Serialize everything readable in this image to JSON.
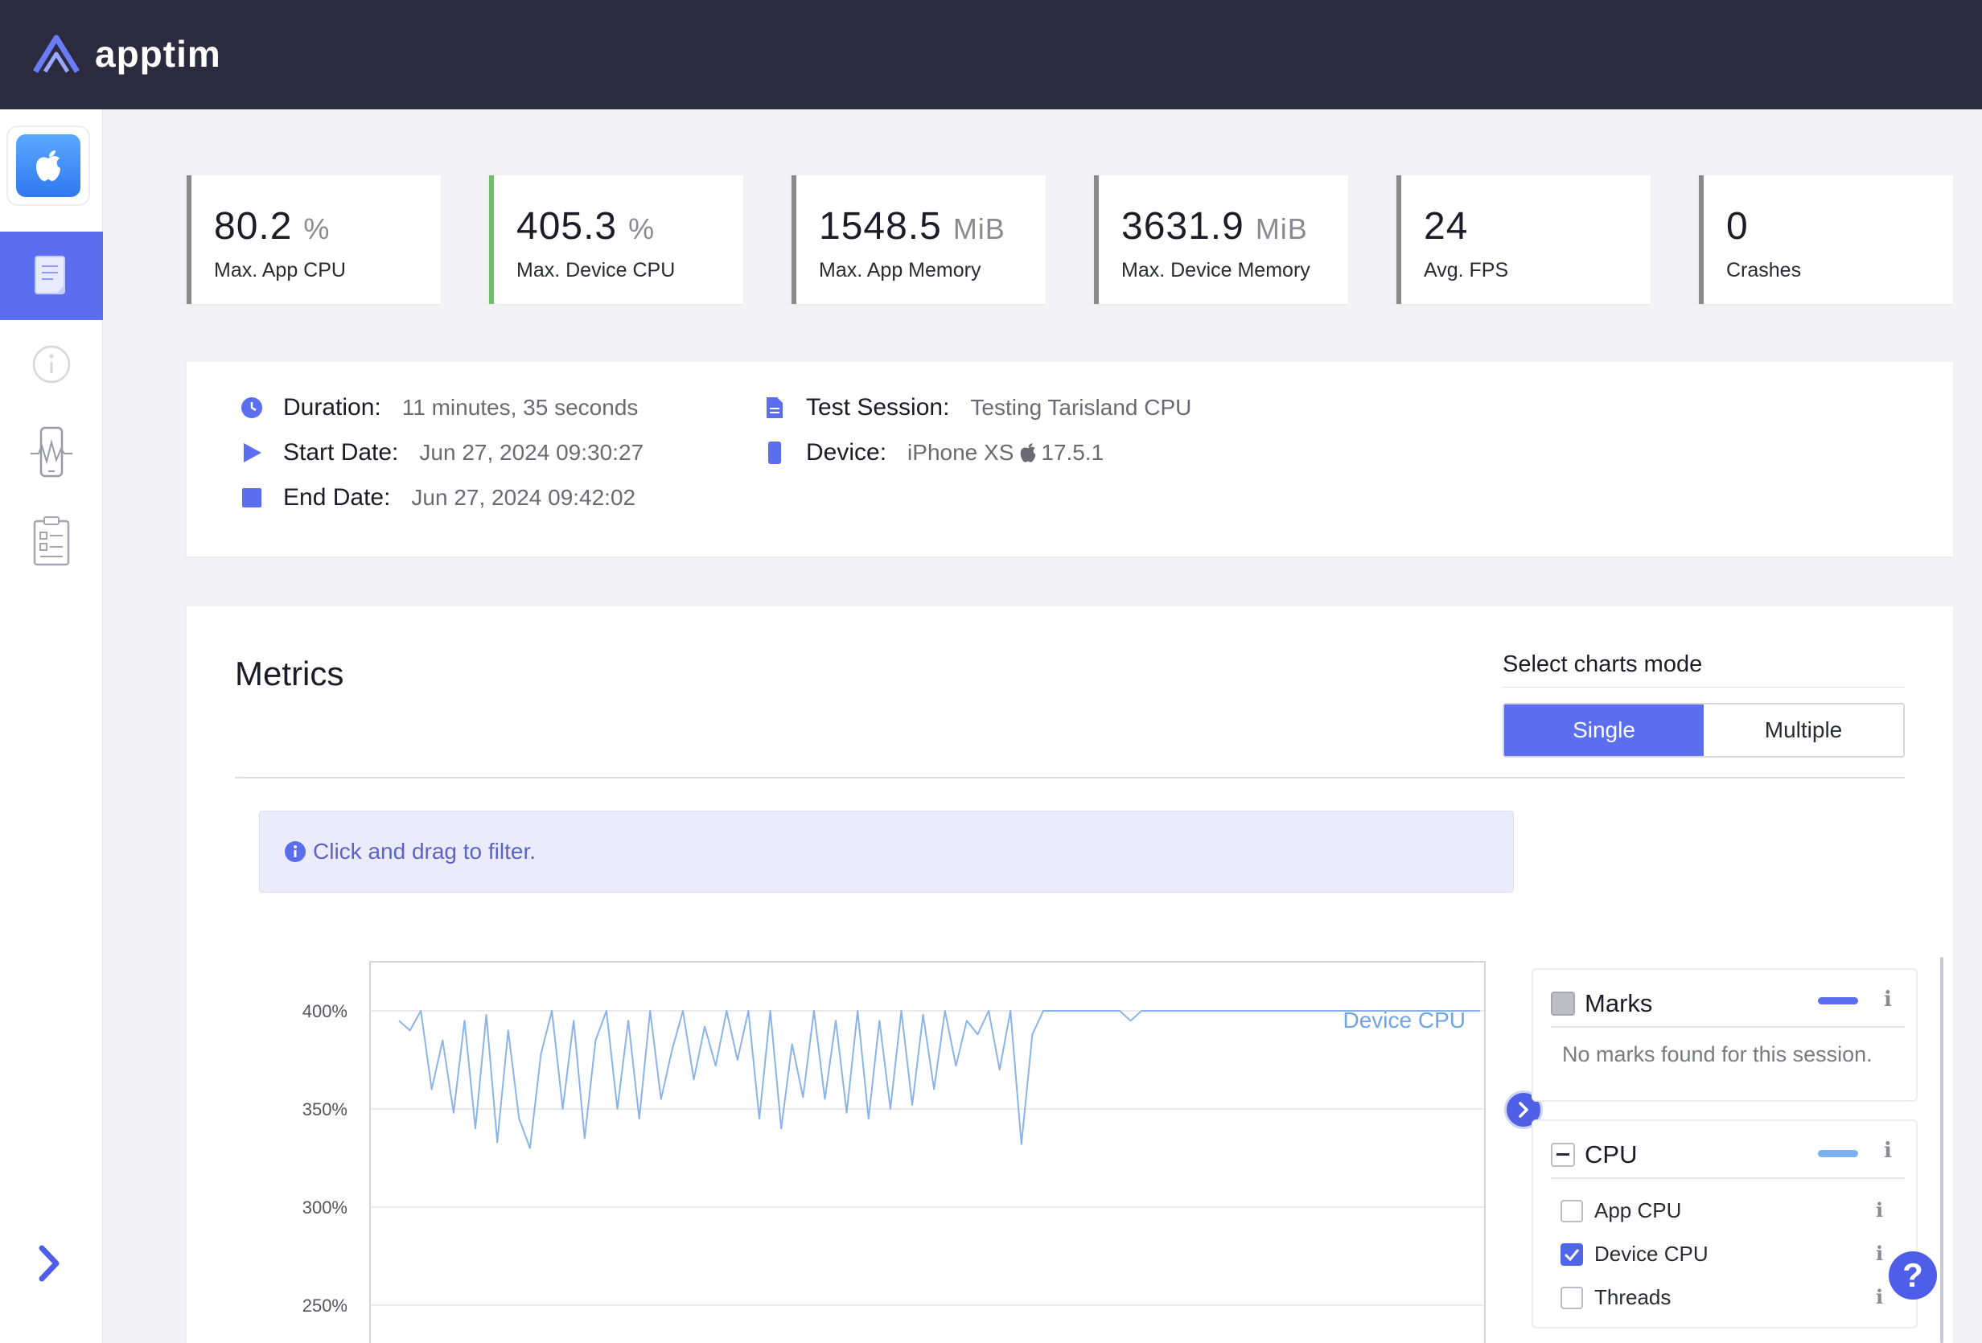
{
  "header": {
    "logo_text": "apptim"
  },
  "sidebar": {
    "items": [
      {
        "name": "app-platform",
        "icon": "apple-icon"
      },
      {
        "name": "report",
        "icon": "document-icon",
        "active": true
      },
      {
        "name": "info",
        "icon": "info-icon"
      },
      {
        "name": "device",
        "icon": "phone-icon"
      },
      {
        "name": "checklist",
        "icon": "clipboard-icon"
      }
    ],
    "expand_icon": "chevron-right-icon"
  },
  "summary_cards": [
    {
      "value": "80.2",
      "unit": "%",
      "label": "Max. App CPU"
    },
    {
      "value": "405.3",
      "unit": "%",
      "label": "Max. Device CPU"
    },
    {
      "value": "1548.5",
      "unit": "MiB",
      "label": "Max. App Memory"
    },
    {
      "value": "3631.9",
      "unit": "MiB",
      "label": "Max. Device Memory"
    },
    {
      "value": "24",
      "unit": "",
      "label": "Avg. FPS"
    },
    {
      "value": "0",
      "unit": "",
      "label": "Crashes"
    }
  ],
  "session": {
    "duration_label": "Duration:",
    "duration": "11 minutes, 35 seconds",
    "start_label": "Start Date:",
    "start": "Jun 27, 2024 09:30:27",
    "end_label": "End Date:",
    "end": "Jun 27, 2024 09:42:02",
    "test_session_label": "Test Session:",
    "test_session": "Testing Tarisland CPU",
    "device_label": "Device:",
    "device": "iPhone XS",
    "os_version": "17.5.1"
  },
  "metrics": {
    "title": "Metrics",
    "mode_label": "Select charts mode",
    "modes": [
      "Single",
      "Multiple"
    ],
    "selected_mode": "Single",
    "hint": "Click and drag to filter."
  },
  "chart_data": {
    "type": "line",
    "title": "",
    "series": [
      {
        "name": "Device CPU",
        "color": "#8ab3e8",
        "values": [
          395,
          390,
          400,
          360,
          385,
          348,
          395,
          340,
          398,
          333,
          390,
          345,
          330,
          378,
          400,
          350,
          395,
          335,
          385,
          400,
          350,
          395,
          345,
          400,
          355,
          380,
          400,
          365,
          392,
          372,
          400,
          375,
          400,
          345,
          400,
          340,
          383,
          356,
          400,
          355,
          395,
          348,
          400,
          345,
          395,
          350,
          400,
          352,
          398,
          360,
          400,
          372,
          395,
          388,
          400,
          370,
          400,
          332,
          388,
          400,
          400,
          400,
          400,
          400,
          400,
          400,
          400,
          395,
          400,
          400,
          400,
          400,
          400,
          400,
          400,
          400,
          400,
          400,
          400,
          400,
          400,
          400,
          400,
          400,
          400,
          400,
          400,
          400,
          400,
          400,
          400,
          400,
          400,
          400,
          400,
          400,
          400,
          400,
          400,
          400
        ]
      }
    ],
    "ylabel": "",
    "xlabel": "",
    "y_ticks": [
      "400%",
      "350%",
      "300%",
      "250%"
    ],
    "ylim": [
      220,
      425
    ],
    "grid": true
  },
  "side_panels": {
    "marks": {
      "label": "Marks",
      "color": "#5b6ef0",
      "empty_text": "No marks found for this session."
    },
    "cpu": {
      "label": "CPU",
      "color": "#7ab0f0",
      "items": [
        {
          "label": "App CPU",
          "checked": false
        },
        {
          "label": "Device CPU",
          "checked": true
        },
        {
          "label": "Threads",
          "checked": false
        }
      ]
    }
  },
  "help": {
    "label": "?"
  }
}
